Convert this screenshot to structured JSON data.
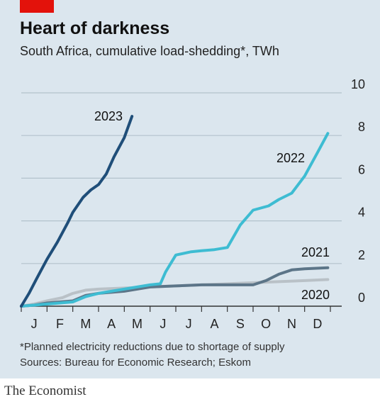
{
  "chart_data": {
    "type": "line",
    "title": "Heart of darkness",
    "subtitle": "South Africa, cumulative load-shedding*, TWh",
    "footnote": "*Planned electricity reductions due to shortage of supply",
    "source": "Sources: Bureau for Economic Research; Eskom",
    "brand": "The Economist",
    "xlabel": "",
    "ylabel": "",
    "ylim": [
      0,
      10
    ],
    "xlim": [
      0,
      12
    ],
    "yticks": [
      0,
      2,
      4,
      6,
      8,
      10
    ],
    "ytick_labels": [
      "0",
      "2",
      "4",
      "6",
      "8",
      "10"
    ],
    "month_labels": [
      "J",
      "F",
      "M",
      "A",
      "M",
      "J",
      "J",
      "A",
      "S",
      "O",
      "N",
      "D"
    ],
    "grid": true,
    "series": [
      {
        "name": "2020",
        "color": "#b9c1c7",
        "x": [
          0,
          0.5,
          1.0,
          1.6,
          2.0,
          2.5,
          3.0,
          4.0,
          5.0,
          6.0,
          7.0,
          8.0,
          9.0,
          10.0,
          11.0,
          11.9
        ],
        "values": [
          0,
          0.1,
          0.25,
          0.4,
          0.6,
          0.75,
          0.8,
          0.85,
          0.9,
          0.95,
          1.0,
          1.05,
          1.1,
          1.15,
          1.2,
          1.25
        ]
      },
      {
        "name": "2021",
        "color": "#5c7588",
        "x": [
          0,
          0.5,
          1.0,
          2.0,
          2.5,
          3.0,
          4.0,
          4.5,
          5.0,
          6.0,
          7.0,
          8.0,
          9.0,
          9.5,
          10.0,
          10.5,
          11.0,
          11.9
        ],
        "values": [
          0,
          0.05,
          0.15,
          0.25,
          0.5,
          0.6,
          0.7,
          0.8,
          0.9,
          0.95,
          1.0,
          1.0,
          1.0,
          1.2,
          1.5,
          1.7,
          1.75,
          1.8
        ]
      },
      {
        "name": "2022",
        "color": "#3ebcd2",
        "x": [
          0,
          1.0,
          2.0,
          2.5,
          3.0,
          4.0,
          5.0,
          5.4,
          5.6,
          6.0,
          6.6,
          7.0,
          7.5,
          8.0,
          8.5,
          9.0,
          9.6,
          10.0,
          10.5,
          11.0,
          11.5,
          11.9
        ],
        "values": [
          0,
          0.1,
          0.2,
          0.45,
          0.6,
          0.8,
          1.0,
          1.05,
          1.6,
          2.4,
          2.55,
          2.6,
          2.65,
          2.75,
          3.8,
          4.5,
          4.7,
          5.0,
          5.3,
          6.1,
          7.2,
          8.1
        ]
      },
      {
        "name": "2023",
        "color": "#1f4e79",
        "x": [
          0,
          0.3,
          0.6,
          1.0,
          1.4,
          1.8,
          2.0,
          2.4,
          2.7,
          3.0,
          3.3,
          3.6,
          4.0,
          4.3
        ],
        "values": [
          0,
          0.6,
          1.3,
          2.2,
          3.0,
          3.9,
          4.4,
          5.1,
          5.45,
          5.7,
          6.2,
          7.0,
          7.9,
          8.9
        ]
      }
    ]
  }
}
